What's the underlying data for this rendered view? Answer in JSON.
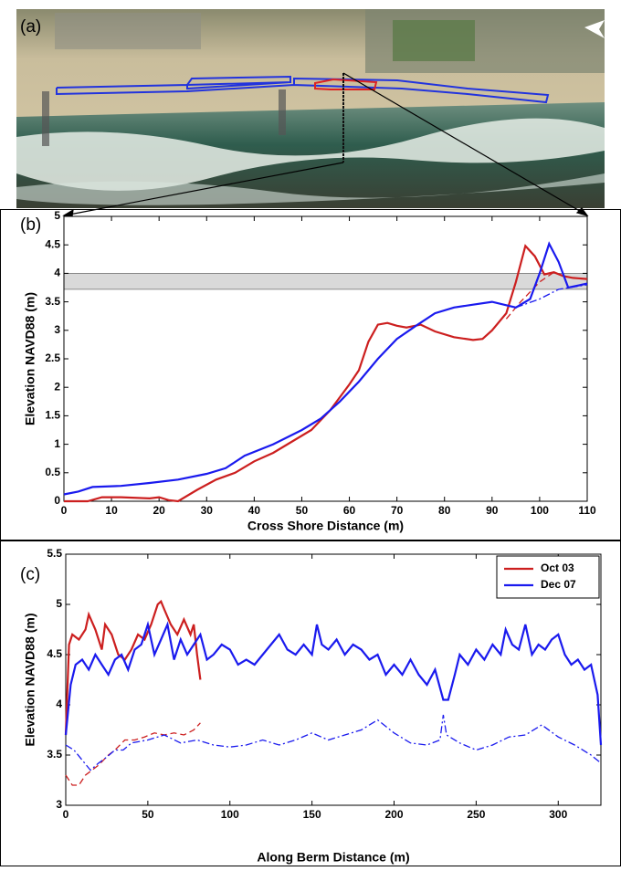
{
  "image_panel": {
    "label": "(a)"
  },
  "chart_data": [
    {
      "type": "line",
      "label": "(b)",
      "xlabel": "Cross Shore Distance (m)",
      "ylabel": "Elevation NAVD88 (m)",
      "xlim": [
        0,
        110
      ],
      "ylim": [
        0,
        5
      ],
      "xticks": [
        0,
        10,
        20,
        30,
        40,
        50,
        60,
        70,
        80,
        90,
        100,
        110
      ],
      "yticks": [
        0,
        0.5,
        1,
        1.5,
        2,
        2.5,
        3,
        3.5,
        4,
        4.5,
        5
      ],
      "band": {
        "ymin": 3.72,
        "ymax": 4.0,
        "color": "#d9d9d9"
      },
      "series": [
        {
          "color": "#cc1f1f",
          "linestyle": "solid",
          "x": [
            0,
            5,
            8,
            12,
            18,
            20,
            22,
            24,
            28,
            32,
            36,
            40,
            44,
            48,
            52,
            56,
            60,
            62,
            64,
            66,
            68,
            70,
            72,
            75,
            78,
            82,
            86,
            88,
            90,
            93,
            95,
            97,
            99,
            101,
            103,
            105,
            107,
            110
          ],
          "values": [
            0,
            0,
            0.07,
            0.07,
            0.05,
            0.07,
            0.02,
            0,
            0.2,
            0.38,
            0.5,
            0.7,
            0.85,
            1.05,
            1.25,
            1.6,
            2.05,
            2.3,
            2.8,
            3.1,
            3.13,
            3.08,
            3.05,
            3.1,
            2.98,
            2.88,
            2.83,
            2.85,
            3.0,
            3.3,
            3.85,
            4.48,
            4.3,
            3.98,
            4.02,
            3.95,
            3.92,
            3.9
          ]
        },
        {
          "color": "#cc1f1f",
          "linestyle": "dashed",
          "x": [
            93,
            96,
            100,
            103
          ],
          "values": [
            3.2,
            3.5,
            3.85,
            4.02
          ]
        },
        {
          "color": "#1a1aee",
          "linestyle": "solid",
          "x": [
            0,
            3,
            6,
            12,
            18,
            24,
            30,
            34,
            38,
            44,
            50,
            54,
            58,
            62,
            66,
            70,
            74,
            78,
            82,
            86,
            90,
            95,
            98,
            100,
            102,
            104,
            106,
            110
          ],
          "values": [
            0.12,
            0.17,
            0.25,
            0.27,
            0.32,
            0.38,
            0.48,
            0.58,
            0.8,
            1.0,
            1.25,
            1.45,
            1.75,
            2.1,
            2.5,
            2.85,
            3.08,
            3.3,
            3.4,
            3.45,
            3.5,
            3.4,
            3.55,
            4.0,
            4.52,
            4.2,
            3.75,
            3.82
          ]
        },
        {
          "color": "#1a1aee",
          "linestyle": "dashdot",
          "x": [
            95,
            100,
            104,
            110
          ],
          "values": [
            3.4,
            3.55,
            3.72,
            3.8
          ]
        }
      ]
    },
    {
      "type": "line",
      "label": "(c)",
      "xlabel": "Along Berm Distance (m)",
      "ylabel": "Elevation NAVD88 (m)",
      "xlim": [
        0,
        326
      ],
      "ylim": [
        3,
        5.5
      ],
      "xticks": [
        0,
        50,
        100,
        150,
        200,
        250,
        300
      ],
      "yticks": [
        3,
        3.5,
        4,
        4.5,
        5,
        5.5
      ],
      "legend": "upper right",
      "series": [
        {
          "name": "Oct 03",
          "color": "#cc1f1f",
          "linestyle": "solid",
          "x": [
            0,
            2,
            4,
            8,
            12,
            14,
            18,
            22,
            24,
            28,
            32,
            36,
            40,
            44,
            48,
            52,
            56,
            58,
            60,
            64,
            68,
            72,
            76,
            78,
            80,
            82
          ],
          "values": [
            3.7,
            4.6,
            4.7,
            4.65,
            4.75,
            4.9,
            4.75,
            4.55,
            4.8,
            4.7,
            4.5,
            4.45,
            4.55,
            4.7,
            4.65,
            4.8,
            5.0,
            5.03,
            4.95,
            4.8,
            4.7,
            4.85,
            4.7,
            4.8,
            4.5,
            4.25
          ]
        },
        {
          "name": "Dec 07",
          "color": "#1a1aee",
          "linestyle": "solid",
          "x": [
            0,
            3,
            6,
            10,
            14,
            18,
            22,
            26,
            30,
            34,
            38,
            42,
            46,
            50,
            54,
            58,
            62,
            66,
            70,
            74,
            78,
            82,
            86,
            90,
            95,
            100,
            105,
            110,
            115,
            120,
            125,
            130,
            135,
            140,
            145,
            150,
            153,
            156,
            160,
            165,
            170,
            175,
            180,
            185,
            190,
            195,
            200,
            205,
            210,
            215,
            220,
            225,
            230,
            233,
            237,
            240,
            245,
            250,
            255,
            260,
            265,
            268,
            272,
            276,
            280,
            284,
            288,
            292,
            296,
            300,
            304,
            308,
            312,
            316,
            320,
            324,
            326
          ],
          "values": [
            3.7,
            4.2,
            4.4,
            4.45,
            4.35,
            4.5,
            4.4,
            4.3,
            4.45,
            4.5,
            4.35,
            4.55,
            4.6,
            4.8,
            4.5,
            4.65,
            4.8,
            4.45,
            4.65,
            4.5,
            4.6,
            4.7,
            4.45,
            4.5,
            4.6,
            4.55,
            4.4,
            4.45,
            4.4,
            4.5,
            4.6,
            4.7,
            4.55,
            4.5,
            4.6,
            4.5,
            4.8,
            4.6,
            4.55,
            4.65,
            4.5,
            4.6,
            4.55,
            4.45,
            4.5,
            4.3,
            4.4,
            4.3,
            4.45,
            4.3,
            4.2,
            4.35,
            4.05,
            4.05,
            4.3,
            4.5,
            4.4,
            4.55,
            4.45,
            4.6,
            4.5,
            4.75,
            4.6,
            4.55,
            4.8,
            4.5,
            4.6,
            4.55,
            4.65,
            4.7,
            4.5,
            4.4,
            4.45,
            4.35,
            4.4,
            4.1,
            3.6
          ]
        },
        {
          "color": "#cc1f1f",
          "linestyle": "dashed",
          "x": [
            0,
            4,
            8,
            12,
            16,
            20,
            26,
            30,
            36,
            42,
            48,
            54,
            60,
            66,
            72,
            78,
            82
          ],
          "values": [
            3.3,
            3.2,
            3.2,
            3.3,
            3.35,
            3.4,
            3.5,
            3.55,
            3.65,
            3.65,
            3.68,
            3.72,
            3.7,
            3.72,
            3.7,
            3.75,
            3.82
          ]
        },
        {
          "color": "#1a1aee",
          "linestyle": "dashdot",
          "x": [
            0,
            5,
            10,
            15,
            20,
            25,
            30,
            35,
            40,
            50,
            60,
            70,
            80,
            90,
            100,
            110,
            120,
            130,
            140,
            150,
            160,
            170,
            180,
            190,
            200,
            210,
            220,
            228,
            230,
            232,
            240,
            250,
            260,
            270,
            280,
            290,
            300,
            310,
            320,
            326
          ],
          "values": [
            3.6,
            3.55,
            3.45,
            3.35,
            3.42,
            3.48,
            3.55,
            3.55,
            3.62,
            3.65,
            3.7,
            3.62,
            3.65,
            3.6,
            3.58,
            3.6,
            3.65,
            3.6,
            3.65,
            3.72,
            3.65,
            3.7,
            3.75,
            3.85,
            3.72,
            3.62,
            3.6,
            3.65,
            3.9,
            3.7,
            3.62,
            3.55,
            3.6,
            3.68,
            3.7,
            3.8,
            3.68,
            3.6,
            3.5,
            3.42
          ]
        }
      ]
    }
  ]
}
